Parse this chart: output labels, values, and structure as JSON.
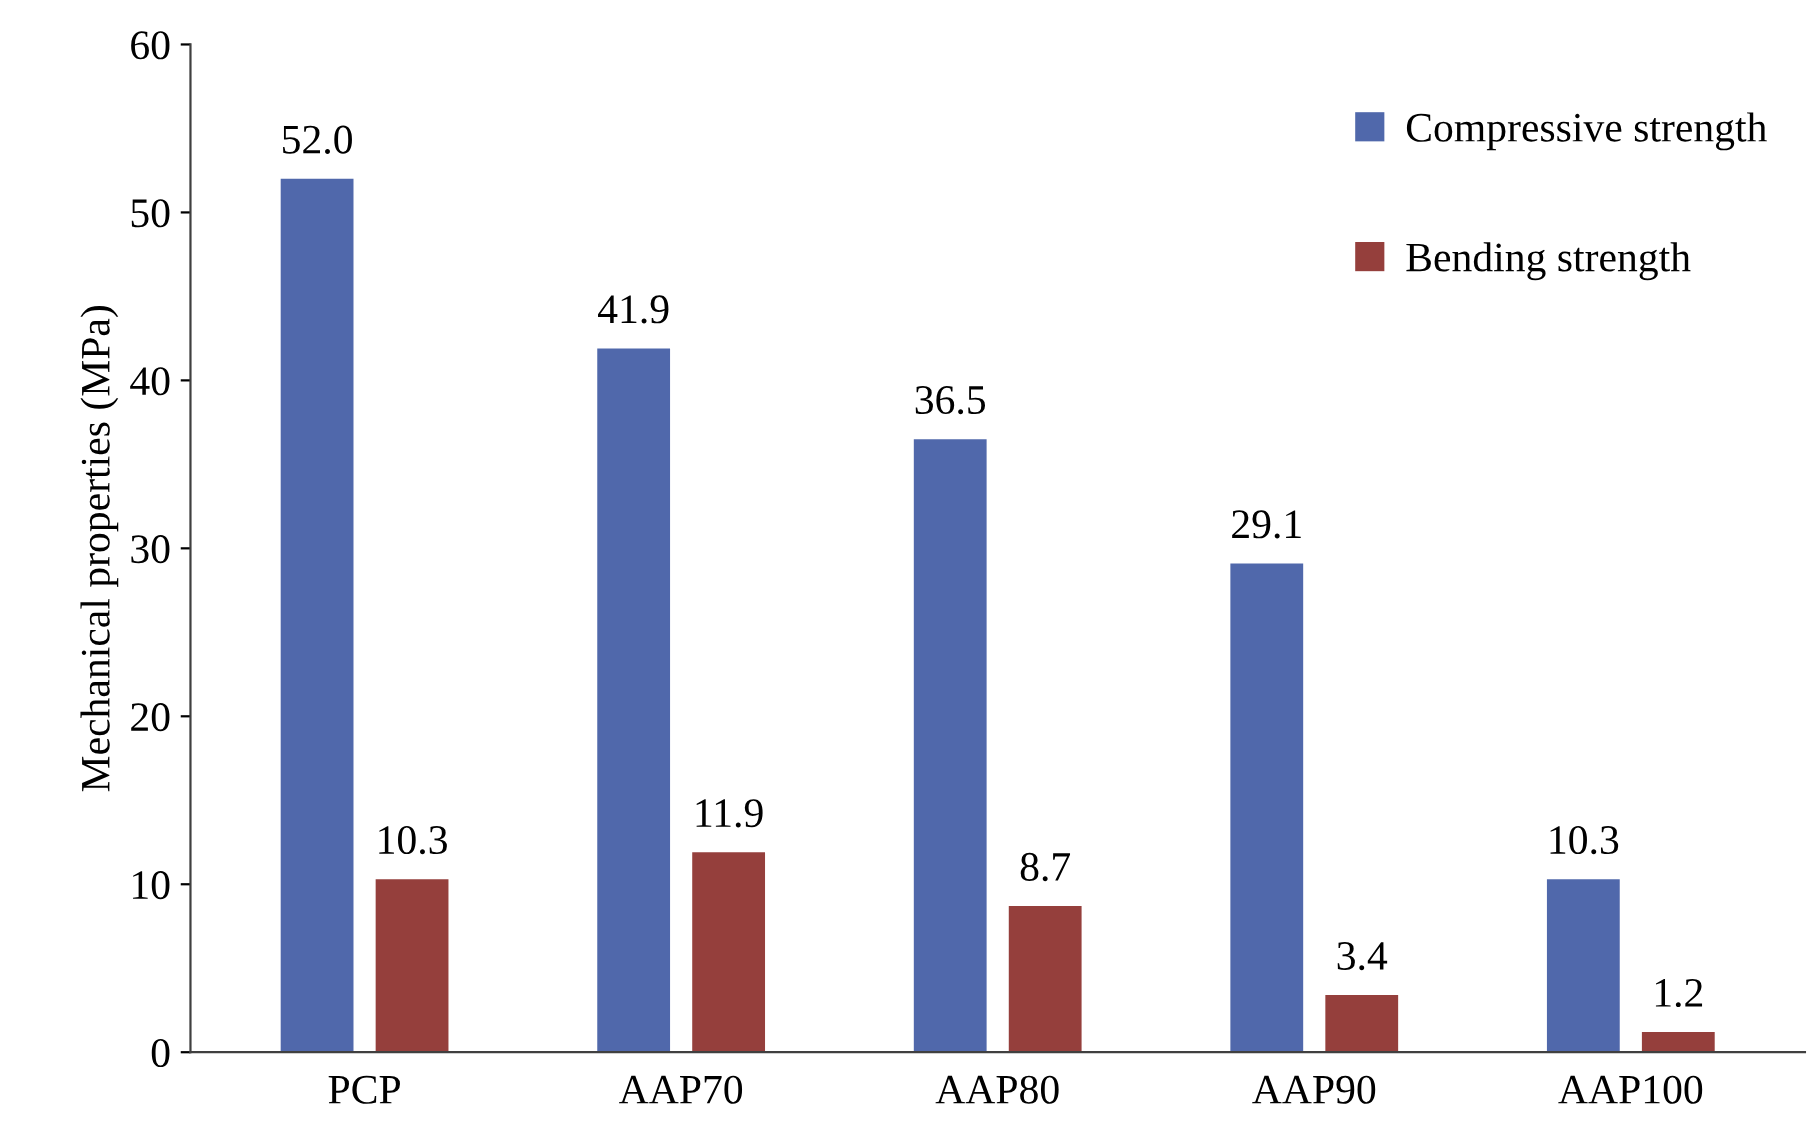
{
  "chart_data": {
    "type": "bar",
    "ylabel": "Mechanical properties (MPa)",
    "categories": [
      "PCP",
      "AAP70",
      "AAP80",
      "AAP90",
      "AAP100"
    ],
    "series": [
      {
        "name": "Compressive strength",
        "color": "#5068ab",
        "values": [
          52.0,
          41.9,
          36.5,
          29.1,
          10.3
        ],
        "value_labels": [
          "52.0",
          "41.9",
          "36.5",
          "29.1",
          "10.3"
        ]
      },
      {
        "name": "Bending strength",
        "color": "#953f3c",
        "values": [
          10.3,
          11.9,
          8.7,
          3.4,
          1.2
        ],
        "value_labels": [
          "10.3",
          "11.9",
          "8.7",
          "3.4",
          "1.2"
        ]
      }
    ],
    "ylim": [
      0,
      60
    ],
    "yticks": [
      0,
      10,
      20,
      30,
      40,
      50,
      60
    ],
    "grid": false,
    "legend": "top right"
  }
}
